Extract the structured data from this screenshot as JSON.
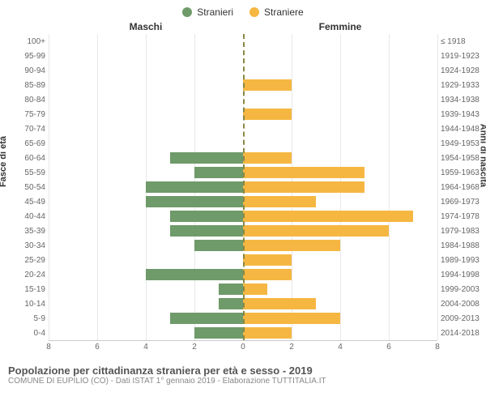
{
  "legend": {
    "male": {
      "label": "Stranieri",
      "color": "#6f9a6a"
    },
    "female": {
      "label": "Straniere",
      "color": "#f5b742"
    }
  },
  "titles": {
    "left": "Maschi",
    "right": "Femmine",
    "y_left": "Fasce di età",
    "y_right": "Anni di nascita"
  },
  "chart": {
    "type": "population-pyramid",
    "xmax": 8,
    "xticks": [
      8,
      6,
      4,
      2,
      0,
      2,
      4,
      6,
      8
    ],
    "bar_color_left": "#6f9a6a",
    "bar_color_right": "#f5b742",
    "grid_color": "#e8e8e8",
    "center_line_color": "#888844",
    "background_color": "#ffffff",
    "label_fontsize": 10,
    "rows": [
      {
        "age": "100+",
        "year": "≤ 1918",
        "m": 0,
        "f": 0
      },
      {
        "age": "95-99",
        "year": "1919-1923",
        "m": 0,
        "f": 0
      },
      {
        "age": "90-94",
        "year": "1924-1928",
        "m": 0,
        "f": 0
      },
      {
        "age": "85-89",
        "year": "1929-1933",
        "m": 0,
        "f": 2
      },
      {
        "age": "80-84",
        "year": "1934-1938",
        "m": 0,
        "f": 0
      },
      {
        "age": "75-79",
        "year": "1939-1943",
        "m": 0,
        "f": 2
      },
      {
        "age": "70-74",
        "year": "1944-1948",
        "m": 0,
        "f": 0
      },
      {
        "age": "65-69",
        "year": "1949-1953",
        "m": 0,
        "f": 0
      },
      {
        "age": "60-64",
        "year": "1954-1958",
        "m": 3,
        "f": 2
      },
      {
        "age": "55-59",
        "year": "1959-1963",
        "m": 2,
        "f": 5
      },
      {
        "age": "50-54",
        "year": "1964-1968",
        "m": 4,
        "f": 5
      },
      {
        "age": "45-49",
        "year": "1969-1973",
        "m": 4,
        "f": 3
      },
      {
        "age": "40-44",
        "year": "1974-1978",
        "m": 3,
        "f": 7
      },
      {
        "age": "35-39",
        "year": "1979-1983",
        "m": 3,
        "f": 6
      },
      {
        "age": "30-34",
        "year": "1984-1988",
        "m": 2,
        "f": 4
      },
      {
        "age": "25-29",
        "year": "1989-1993",
        "m": 0,
        "f": 2
      },
      {
        "age": "20-24",
        "year": "1994-1998",
        "m": 4,
        "f": 2
      },
      {
        "age": "15-19",
        "year": "1999-2003",
        "m": 1,
        "f": 1
      },
      {
        "age": "10-14",
        "year": "2004-2008",
        "m": 1,
        "f": 3
      },
      {
        "age": "5-9",
        "year": "2009-2013",
        "m": 3,
        "f": 4
      },
      {
        "age": "0-4",
        "year": "2014-2018",
        "m": 2,
        "f": 2
      }
    ]
  },
  "footer": {
    "title": "Popolazione per cittadinanza straniera per età e sesso - 2019",
    "sub": "COMUNE DI EUPILIO (CO) - Dati ISTAT 1° gennaio 2019 - Elaborazione TUTTITALIA.IT"
  }
}
